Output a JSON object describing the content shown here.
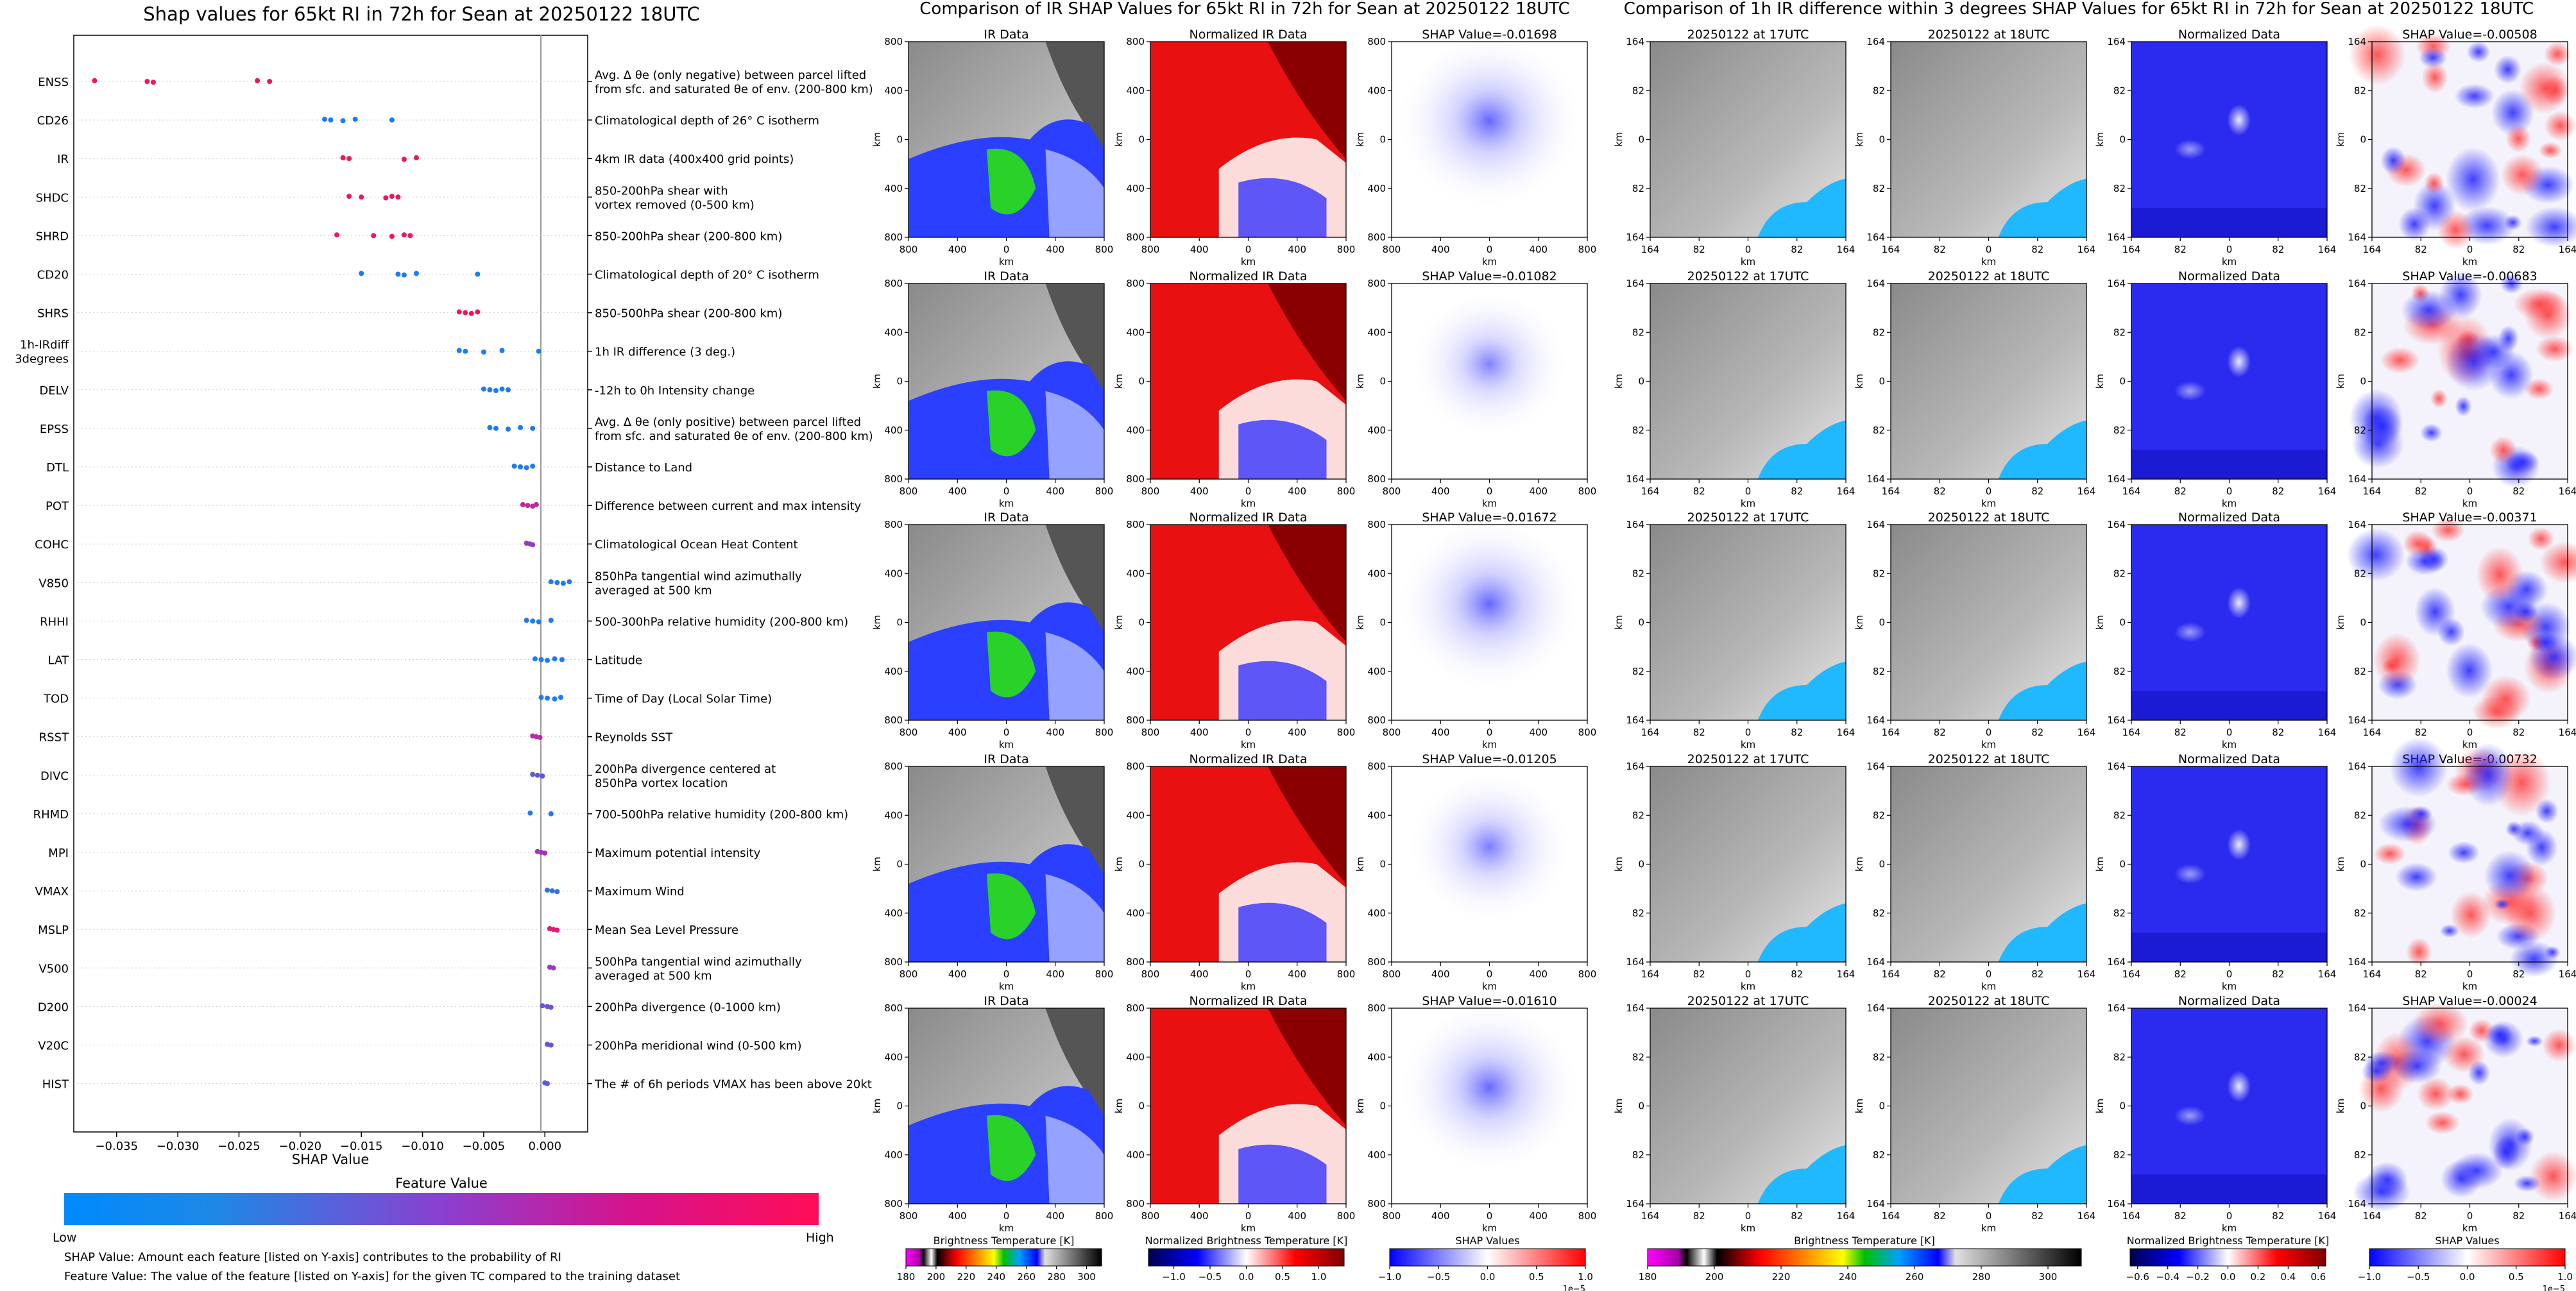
{
  "shap_panel": {
    "title": "Shap values for 65kt RI in 72h for Sean at 20250122 18UTC",
    "xlabel": "SHAP Value",
    "xticks": [
      "−0.035",
      "−0.030",
      "−0.025",
      "−0.020",
      "−0.015",
      "−0.010",
      "−0.005",
      "0.000"
    ],
    "colorbar": {
      "title": "Feature Value",
      "low": "Low",
      "high": "High",
      "low_color": "#1E88E5",
      "high_color": "#FF0D57"
    },
    "notes": [
      "SHAP Value: Amount each feature [listed on Y-axis] contributes to the probability of RI",
      "Feature Value: The value of the feature [listed on Y-axis] for the given TC compared to the training dataset"
    ]
  },
  "chart_data": [
    {
      "type": "scatter",
      "title": "Shap values for 65kt RI in 72h for Sean at 20250122 18UTC",
      "xlabel": "SHAP Value",
      "xlim": [
        -0.0385,
        0.0035
      ],
      "features": [
        {
          "code": "ENSS",
          "desc": [
            "Avg. Δ θe (only negative) between parcel lifted",
            "from sfc. and saturated θe of env. (200-800 km)"
          ],
          "shap": [
            -0.0368,
            -0.0325,
            -0.032,
            -0.0235,
            -0.0225
          ],
          "fv": [
            0.95,
            0.95,
            0.95,
            0.95,
            0.95
          ]
        },
        {
          "code": "CD26",
          "desc": [
            "Climatological depth of 26° C isotherm"
          ],
          "shap": [
            -0.018,
            -0.0175,
            -0.0165,
            -0.0155,
            -0.0125
          ],
          "fv": [
            0.1,
            0.1,
            0.1,
            0.1,
            0.1
          ]
        },
        {
          "code": "IR",
          "desc": [
            "4km IR data (400x400 grid points)"
          ],
          "shap": [
            -0.0165,
            -0.016,
            -0.0115,
            -0.0105
          ],
          "fv": [
            0.95,
            0.95,
            0.95,
            0.95
          ]
        },
        {
          "code": "SHDC",
          "desc": [
            "850-200hPa shear with",
            "vortex removed (0-500 km)"
          ],
          "shap": [
            -0.016,
            -0.015,
            -0.013,
            -0.0125,
            -0.012
          ],
          "fv": [
            0.95,
            0.95,
            0.95,
            0.95,
            0.95
          ]
        },
        {
          "code": "SHRD",
          "desc": [
            "850-200hPa shear (200-800 km)"
          ],
          "shap": [
            -0.017,
            -0.014,
            -0.0125,
            -0.0115,
            -0.011
          ],
          "fv": [
            0.95,
            0.95,
            0.95,
            0.95,
            0.95
          ]
        },
        {
          "code": "CD20",
          "desc": [
            "Climatological depth of 20° C isotherm"
          ],
          "shap": [
            -0.015,
            -0.012,
            -0.0115,
            -0.0105,
            -0.0055
          ],
          "fv": [
            0.1,
            0.1,
            0.1,
            0.1,
            0.1
          ]
        },
        {
          "code": "SHRS",
          "desc": [
            "850-500hPa shear (200-800 km)"
          ],
          "shap": [
            -0.007,
            -0.0065,
            -0.006,
            -0.0055
          ],
          "fv": [
            0.95,
            0.95,
            0.95,
            0.95
          ]
        },
        {
          "code": "1h-IRdiff\n3degrees",
          "desc": [
            "1h IR difference (3 deg.)"
          ],
          "shap": [
            -0.007,
            -0.0065,
            -0.005,
            -0.0035,
            -0.0005
          ],
          "fv": [
            0.1,
            0.1,
            0.1,
            0.1,
            0.1
          ]
        },
        {
          "code": "DELV",
          "desc": [
            "-12h to 0h Intensity change"
          ],
          "shap": [
            -0.005,
            -0.0045,
            -0.004,
            -0.0035,
            -0.003
          ],
          "fv": [
            0.1,
            0.1,
            0.1,
            0.1,
            0.1
          ]
        },
        {
          "code": "EPSS",
          "desc": [
            "Avg. Δ θe (only positive) between parcel lifted",
            "from sfc. and saturated θe of env. (200-800 km)"
          ],
          "shap": [
            -0.0045,
            -0.004,
            -0.003,
            -0.002,
            -0.001
          ],
          "fv": [
            0.1,
            0.1,
            0.1,
            0.1,
            0.1
          ]
        },
        {
          "code": "DTL",
          "desc": [
            "Distance to Land"
          ],
          "shap": [
            -0.0025,
            -0.002,
            -0.0015,
            -0.001
          ],
          "fv": [
            0.1,
            0.1,
            0.1,
            0.1
          ]
        },
        {
          "code": "POT",
          "desc": [
            "Difference between current and max intensity"
          ],
          "shap": [
            -0.0018,
            -0.0014,
            -0.001,
            -0.0007
          ],
          "fv": [
            0.75,
            0.75,
            0.75,
            0.75
          ]
        },
        {
          "code": "COHC",
          "desc": [
            "Climatological Ocean Heat Content"
          ],
          "shap": [
            -0.0015,
            -0.0012,
            -0.001
          ],
          "fv": [
            0.55,
            0.55,
            0.55
          ]
        },
        {
          "code": "V850",
          "desc": [
            "850hPa tangential wind azimuthally",
            "averaged at 500 km"
          ],
          "shap": [
            0.0005,
            0.001,
            0.0015,
            0.002
          ],
          "fv": [
            0.1,
            0.1,
            0.1,
            0.1
          ]
        },
        {
          "code": "RHHI",
          "desc": [
            "500-300hPa relative humidity (200-800 km)"
          ],
          "shap": [
            -0.0015,
            -0.001,
            -0.0005,
            0.0005
          ],
          "fv": [
            0.1,
            0.1,
            0.1,
            0.1
          ]
        },
        {
          "code": "LAT",
          "desc": [
            "Latitude"
          ],
          "shap": [
            -0.0008,
            -0.0003,
            0.0002,
            0.0008,
            0.0014
          ],
          "fv": [
            0.1,
            0.1,
            0.1,
            0.1,
            0.1
          ]
        },
        {
          "code": "TOD",
          "desc": [
            "Time of Day (Local Solar Time)"
          ],
          "shap": [
            -0.0003,
            0.0002,
            0.0008,
            0.0013
          ],
          "fv": [
            0.1,
            0.1,
            0.1,
            0.1
          ]
        },
        {
          "code": "RSST",
          "desc": [
            "Reynolds SST"
          ],
          "shap": [
            -0.001,
            -0.0007,
            -0.0004
          ],
          "fv": [
            0.7,
            0.7,
            0.7
          ]
        },
        {
          "code": "DIVC",
          "desc": [
            "200hPa divergence centered at",
            "850hPa vortex location"
          ],
          "shap": [
            -0.001,
            -0.0006,
            -0.0002
          ],
          "fv": [
            0.35,
            0.35,
            0.35
          ]
        },
        {
          "code": "RHMD",
          "desc": [
            "700-500hPa relative humidity (200-800 km)"
          ],
          "shap": [
            -0.0012,
            0.0005
          ],
          "fv": [
            0.1,
            0.1
          ]
        },
        {
          "code": "MPI",
          "desc": [
            "Maximum potential intensity"
          ],
          "shap": [
            -0.0006,
            -0.0003,
            0.0
          ],
          "fv": [
            0.6,
            0.6,
            0.6
          ]
        },
        {
          "code": "VMAX",
          "desc": [
            "Maximum Wind"
          ],
          "shap": [
            0.0002,
            0.0006,
            0.001
          ],
          "fv": [
            0.2,
            0.2,
            0.2
          ]
        },
        {
          "code": "MSLP",
          "desc": [
            "Mean Sea Level Pressure"
          ],
          "shap": [
            0.0004,
            0.0007,
            0.001
          ],
          "fv": [
            0.9,
            0.9,
            0.9
          ]
        },
        {
          "code": "V500",
          "desc": [
            "500hPa tangential wind azimuthally",
            "averaged at 500 km"
          ],
          "shap": [
            0.0004,
            0.0007
          ],
          "fv": [
            0.55,
            0.55
          ]
        },
        {
          "code": "D200",
          "desc": [
            "200hPa divergence (0-1000 km)"
          ],
          "shap": [
            -0.0002,
            0.0002,
            0.0005
          ],
          "fv": [
            0.4,
            0.4,
            0.4
          ]
        },
        {
          "code": "V20C",
          "desc": [
            "200hPa meridional wind (0-500 km)"
          ],
          "shap": [
            0.0002,
            0.0005
          ],
          "fv": [
            0.4,
            0.4
          ]
        },
        {
          "code": "HIST",
          "desc": [
            "The # of 6h periods VMAX has been above 20kt"
          ],
          "shap": [
            0.0,
            0.0002
          ],
          "fv": [
            0.3,
            0.3
          ]
        }
      ]
    },
    {
      "type": "heatmap",
      "title": "Comparison of IR SHAP Values for 65kt RI in 72h for Sean at 20250122 18UTC",
      "columns": [
        "IR Data",
        "Normalized IR Data",
        "SHAP Value"
      ],
      "shap_values": [
        "-0.01698",
        "-0.01082",
        "-0.01672",
        "-0.01205",
        "-0.01610"
      ],
      "xticks": [
        "800",
        "400",
        "0",
        "400",
        "800"
      ],
      "yticks": [
        "800",
        "400",
        "0",
        "400",
        "800"
      ],
      "axis_label": "km"
    },
    {
      "type": "heatmap",
      "title": "Comparison of 1h IR difference within 3 degrees SHAP Values for 65kt RI in 72h for Sean at 20250122 18UTC",
      "columns": [
        "20250122 at 17UTC",
        "20250122 at 18UTC",
        "Normalized Data",
        "SHAP Value"
      ],
      "shap_values": [
        "-0.00508",
        "-0.00683",
        "-0.00371",
        "-0.00732",
        "-0.00024"
      ],
      "xticks": [
        "164",
        "82",
        "0",
        "82",
        "164"
      ],
      "yticks": [
        "164",
        "82",
        "0",
        "82",
        "164"
      ],
      "axis_label": "km"
    }
  ],
  "colorbars": {
    "mid": [
      {
        "label": "Brightness Temperature [K]",
        "ticks": [
          "180",
          "200",
          "220",
          "240",
          "260",
          "280",
          "300"
        ],
        "range": [
          180,
          310
        ],
        "offset": ""
      },
      {
        "label": "Normalized Brightness Temperature [K]",
        "ticks": [
          "−1.0",
          "−0.5",
          "0.0",
          "0.5",
          "1.0"
        ],
        "range": [
          -1.35,
          1.35
        ],
        "offset": ""
      },
      {
        "label": "SHAP Values",
        "ticks": [
          "−1.0",
          "−0.5",
          "0.0",
          "0.5",
          "1.0"
        ],
        "range": [
          -1,
          1
        ],
        "offset": "1e−5"
      }
    ],
    "right": [
      {
        "label": "Brightness Temperature [K]",
        "ticks": [
          "180",
          "200",
          "220",
          "240",
          "260",
          "280",
          "300"
        ],
        "range": [
          180,
          310
        ],
        "offset": ""
      },
      {
        "label": "Normalized Brightness Temperature [K]",
        "ticks": [
          "−0.6",
          "−0.4",
          "−0.2",
          "0.0",
          "0.2",
          "0.4",
          "0.6"
        ],
        "range": [
          -0.65,
          0.65
        ],
        "offset": ""
      },
      {
        "label": "SHAP Values",
        "ticks": [
          "−1.0",
          "−0.5",
          "0.0",
          "0.5",
          "1.0"
        ],
        "range": [
          -1,
          1
        ],
        "offset": "1e−5"
      }
    ]
  },
  "colors": {
    "ocean_low": "#1E88E5",
    "high": "#FF0D57",
    "shap_neg": "#0000ff",
    "shap_pos": "#ff0000"
  }
}
